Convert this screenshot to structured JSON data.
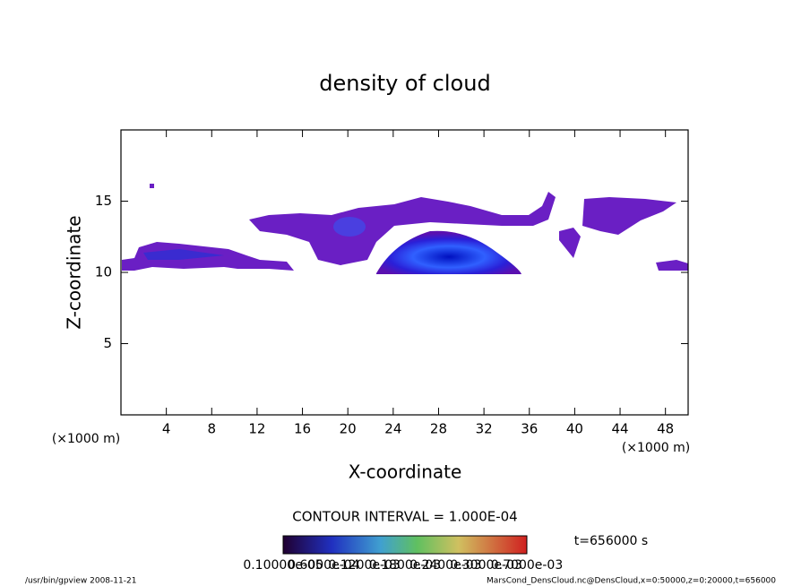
{
  "chart_data": {
    "type": "contour",
    "title": "density of cloud",
    "x_label": "X-coordinate",
    "y_label": "Z-coordinate",
    "x_unit": "(×1000 m)",
    "y_unit": "(×1000 m)",
    "xlim": [
      0,
      50
    ],
    "xticks": [
      4,
      8,
      12,
      16,
      20,
      24,
      28,
      32,
      36,
      40,
      44,
      48
    ],
    "ylim": [
      0,
      20
    ],
    "yticks": [
      5,
      10,
      15
    ],
    "contour_interval": "CONTOUR INTERVAL = 1.000E-04",
    "time_label": "t=656000 s",
    "colorbar_labels": [
      "0.10000e-05",
      "0.6000e-04",
      "0.1200e-03",
      "0.1800e-03",
      "0.2400e-03",
      "0.3000e-03",
      "0.7000e-03"
    ],
    "footer_left": "/usr/bin/gpview   2008-11-21",
    "footer_right": "MarsCond_DensCloud.nc@DensCloud,x=0:50000,z=0:20000,t=656000"
  }
}
